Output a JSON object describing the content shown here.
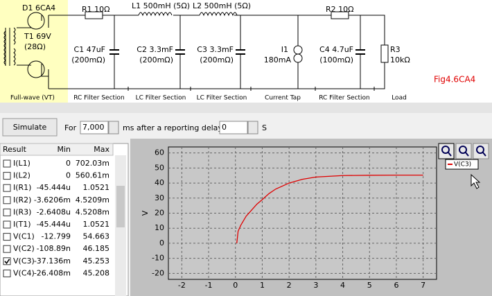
{
  "schematic": {
    "rectifier": "D1 6CA4",
    "transformer": "T1 69V",
    "transformer_res": "(28Ω)",
    "rectifier_type": "Full-wave (VT)",
    "r1": "R1 10Ω",
    "l1": "L1 500mH (5Ω)",
    "l2": "L2 500mH (5Ω)",
    "r2": "R2 10Ω",
    "c1": "C1 47uF",
    "c1_esr": "(200mΩ)",
    "c2": "C2 3.3mF",
    "c2_esr": "(200mΩ)",
    "c3": "C3 3.3mF",
    "c3_esr": "(200mΩ)",
    "i1": "I1",
    "i1_value": "180mA",
    "c4": "C4 4.7uF",
    "c4_esr": "(100mΩ)",
    "r3": "R3",
    "r3_value": "10kΩ",
    "figure": "Fig4.6CA4",
    "sections": [
      "RC Filter Section",
      "LC Filter Section",
      "LC Filter Section",
      "Current Tap",
      "RC Filter Section",
      "Load"
    ]
  },
  "toolbar": {
    "simulate": "Simulate",
    "for_label": "For",
    "duration": "7,000",
    "duration_unit": "ms",
    "delay_label": "after a reporting delay of",
    "delay": "0",
    "delay_unit": "S"
  },
  "results": {
    "columns": [
      "Result",
      "Min",
      "Max"
    ],
    "rows": [
      [
        "I(L1)",
        "0",
        "702.03m",
        false
      ],
      [
        "I(L2)",
        "0",
        "560.61m",
        false
      ],
      [
        "I(R1)",
        "-45.444u",
        "1.0521",
        false
      ],
      [
        "I(R2)",
        "-3.6206m",
        "4.5209m",
        false
      ],
      [
        "I(R3)",
        "-2.6408u",
        "4.5208m",
        false
      ],
      [
        "I(T1)",
        "-45.444u",
        "1.0521",
        false
      ],
      [
        "V(C1)",
        "-12.799",
        "54.663",
        false
      ],
      [
        "V(C2)",
        "-108.89n",
        "46.185",
        false
      ],
      [
        "V(C3)",
        "-37.136m",
        "45.253",
        true
      ],
      [
        "V(C4)",
        "-26.408m",
        "45.208",
        false
      ]
    ]
  },
  "plot": {
    "type": "line",
    "ylabel": "V",
    "xlim": [
      -2.5,
      7.5
    ],
    "ylim": [
      -24,
      64
    ],
    "xticks": [
      -2,
      -1,
      0,
      1,
      2,
      3,
      4,
      5,
      6,
      7
    ],
    "yticks": [
      -20,
      -10,
      0,
      10,
      20,
      30,
      40,
      50,
      60
    ],
    "grid": true,
    "series": [
      {
        "name": "V(C3)",
        "color": "#e00000",
        "x": [
          0.05,
          0.1,
          0.2,
          0.4,
          0.6,
          0.8,
          1,
          1.25,
          1.5,
          2,
          2.5,
          3,
          4,
          5,
          6,
          7
        ],
        "values": [
          0,
          8,
          12,
          18,
          22,
          26,
          29,
          33,
          36,
          40,
          42.5,
          44,
          45,
          45.2,
          45.3,
          45.3
        ]
      }
    ]
  }
}
